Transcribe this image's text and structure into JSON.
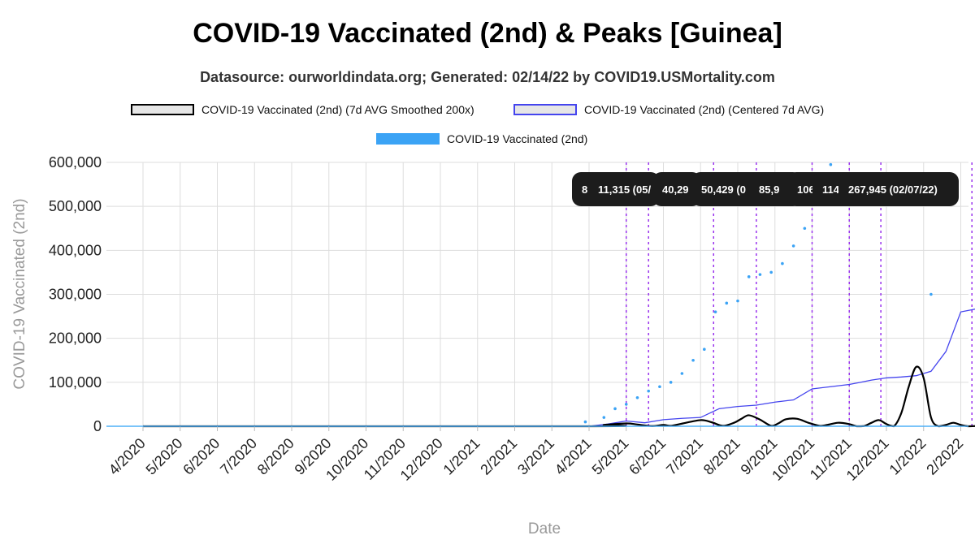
{
  "title": "COVID-19 Vaccinated (2nd) & Peaks [Guinea]",
  "subtitle": "Datasource: ourworldindata.org; Generated: 02/14/22 by COVID19.USMortality.com",
  "colors": {
    "smoothed": "#000000",
    "centered": "#4444ee",
    "daily": "#3ba3f5",
    "peak_line": "#9a33ee",
    "grid": "#dddddd",
    "peak_label_bg": "#1c1c1c"
  },
  "chart_data": {
    "type": "line",
    "title": "COVID-19 Vaccinated (2nd) & Peaks [Guinea]",
    "xlabel": "Date",
    "ylabel": "COVID-19 Vaccinated (2nd)",
    "ylim": [
      0,
      600000
    ],
    "yticks": [
      "0",
      "100,000",
      "200,000",
      "300,000",
      "400,000",
      "500,000",
      "600,000"
    ],
    "xticks": [
      "4/2020",
      "5/2020",
      "6/2020",
      "7/2020",
      "8/2020",
      "9/2020",
      "10/2020",
      "11/2020",
      "12/2020",
      "1/2021",
      "2/2021",
      "3/2021",
      "4/2021",
      "5/2021",
      "6/2021",
      "7/2021",
      "8/2021",
      "9/2021",
      "10/2021",
      "11/2021",
      "12/2021",
      "1/2022",
      "2/2022"
    ],
    "grid": true,
    "legend_position": "top",
    "legend": [
      "COVID-19 Vaccinated (2nd) (7d AVG Smoothed 200x)",
      "COVID-19 Vaccinated (2nd) (Centered 7d AVG)",
      "COVID-19 Vaccinated (2nd)"
    ],
    "peak_labels": [
      "8",
      "11,315 (05/",
      "40,29",
      "50,429 (0",
      "85,9",
      "106,",
      "114",
      "267,945 (02/07/22)"
    ],
    "peak_months": [
      13.0,
      13.6,
      15.35,
      16.5,
      18.0,
      19.0,
      19.85,
      22.3
    ],
    "series": [
      {
        "name": "COVID-19 Vaccinated (2nd) (7d AVG Smoothed 200x)",
        "x": [
          0,
          12.0,
          12.4,
          13.0,
          13.3,
          13.7,
          14.0,
          14.2,
          14.5,
          15.0,
          15.3,
          15.6,
          15.9,
          16.1,
          16.3,
          16.6,
          16.9,
          17.1,
          17.3,
          17.6,
          17.9,
          18.2,
          18.4,
          18.7,
          19.0,
          19.2,
          19.4,
          19.6,
          19.8,
          20.0,
          20.2,
          20.4,
          20.6,
          20.8,
          21.0,
          21.2,
          21.4,
          21.6,
          21.8,
          22.0,
          22.2,
          22.4,
          22.7,
          22.9
        ],
        "y": [
          0,
          0,
          3000,
          6500,
          4000,
          500,
          3000,
          1000,
          6000,
          14000,
          9000,
          1000,
          8000,
          17000,
          25000,
          15000,
          1000,
          7000,
          16000,
          17000,
          8000,
          1000,
          3000,
          8000,
          5000,
          0,
          500,
          8000,
          14000,
          5000,
          0,
          30000,
          90000,
          135000,
          110000,
          20000,
          0,
          3000,
          8000,
          3000,
          0,
          500,
          1000,
          0
        ]
      },
      {
        "name": "COVID-19 Vaccinated (2nd) (Centered 7d AVG)",
        "x": [
          0,
          12.0,
          12.5,
          13.0,
          13.5,
          14.0,
          14.5,
          15.0,
          15.5,
          16.0,
          16.5,
          17.0,
          17.5,
          18.0,
          18.5,
          19.0,
          19.3,
          19.6,
          20.0,
          20.4,
          20.8,
          21.2,
          21.6,
          22.0,
          22.3,
          22.6,
          22.9
        ],
        "y": [
          0,
          0,
          5000,
          12000,
          8000,
          15000,
          18000,
          20000,
          40000,
          45000,
          48000,
          55000,
          60000,
          85000,
          90000,
          95000,
          100000,
          105000,
          110000,
          112000,
          115000,
          125000,
          170000,
          260000,
          265000,
          270000,
          268000
        ]
      },
      {
        "name": "COVID-19 Vaccinated (2nd)",
        "x": [
          0,
          11.9,
          12.4,
          12.7,
          13.0,
          13.3,
          13.6,
          13.9,
          14.2,
          14.5,
          14.8,
          15.1,
          15.4,
          15.7,
          16.0,
          16.3,
          16.6,
          16.9,
          17.2,
          17.5,
          17.8,
          18.1,
          18.3,
          18.5
        ],
        "y": [
          0,
          10000,
          20000,
          40000,
          50000,
          65000,
          80000,
          90000,
          100000,
          120000,
          150000,
          175000,
          260000,
          280000,
          285000,
          340000,
          345000,
          350000,
          370000,
          410000,
          450000,
          520000,
          560000,
          595000
        ]
      }
    ]
  }
}
